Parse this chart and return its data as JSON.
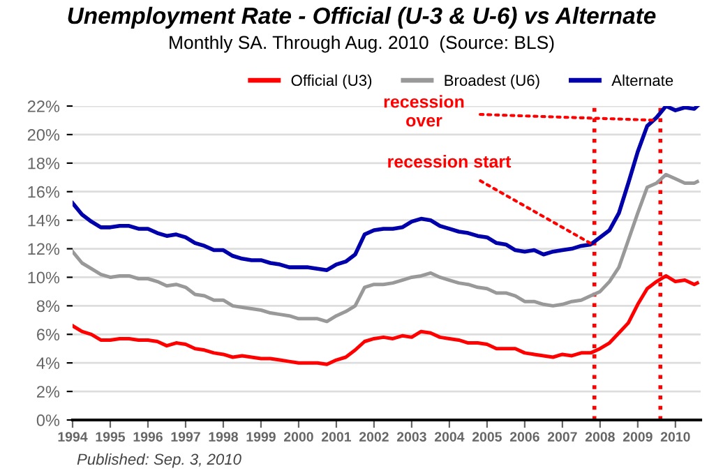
{
  "chart_data": {
    "type": "line",
    "title": "Unemployment Rate - Official (U-3 & U-6) vs Alternate",
    "subtitle": "Monthly SA. Through Aug. 2010  (Source: BLS)",
    "x": [
      1994.0,
      1994.25,
      1994.5,
      1994.75,
      1995.0,
      1995.25,
      1995.5,
      1995.75,
      1996.0,
      1996.25,
      1996.5,
      1996.75,
      1997.0,
      1997.25,
      1997.5,
      1997.75,
      1998.0,
      1998.25,
      1998.5,
      1998.75,
      1999.0,
      1999.25,
      1999.5,
      1999.75,
      2000.0,
      2000.25,
      2000.5,
      2000.75,
      2001.0,
      2001.25,
      2001.5,
      2001.75,
      2002.0,
      2002.25,
      2002.5,
      2002.75,
      2003.0,
      2003.25,
      2003.5,
      2003.75,
      2004.0,
      2004.25,
      2004.5,
      2004.75,
      2005.0,
      2005.25,
      2005.5,
      2005.75,
      2006.0,
      2006.25,
      2006.5,
      2006.75,
      2007.0,
      2007.25,
      2007.5,
      2007.75,
      2008.0,
      2008.25,
      2008.5,
      2008.75,
      2009.0,
      2009.25,
      2009.5,
      2009.75,
      2010.0,
      2010.25,
      2010.5,
      2010.58
    ],
    "series": [
      {
        "name": "Official (U3)",
        "color": "#ff0000",
        "values": [
          6.6,
          6.2,
          6.0,
          5.6,
          5.6,
          5.7,
          5.7,
          5.6,
          5.6,
          5.5,
          5.2,
          5.4,
          5.3,
          5.0,
          4.9,
          4.7,
          4.6,
          4.4,
          4.5,
          4.4,
          4.3,
          4.3,
          4.2,
          4.1,
          4.0,
          4.0,
          4.0,
          3.9,
          4.2,
          4.4,
          4.9,
          5.5,
          5.7,
          5.8,
          5.7,
          5.9,
          5.8,
          6.2,
          6.1,
          5.8,
          5.7,
          5.6,
          5.4,
          5.4,
          5.3,
          5.0,
          5.0,
          5.0,
          4.7,
          4.6,
          4.5,
          4.4,
          4.6,
          4.5,
          4.7,
          4.7,
          5.0,
          5.4,
          6.1,
          6.8,
          8.1,
          9.2,
          9.7,
          10.1,
          9.7,
          9.8,
          9.5,
          9.6
        ]
      },
      {
        "name": "Broadest (U6)",
        "color": "#999999",
        "values": [
          11.8,
          11.0,
          10.6,
          10.2,
          10.0,
          10.1,
          10.1,
          9.9,
          9.9,
          9.7,
          9.4,
          9.5,
          9.3,
          8.8,
          8.7,
          8.4,
          8.4,
          8.0,
          7.9,
          7.8,
          7.7,
          7.5,
          7.4,
          7.3,
          7.1,
          7.1,
          7.1,
          6.9,
          7.3,
          7.6,
          8.0,
          9.3,
          9.5,
          9.5,
          9.6,
          9.8,
          10.0,
          10.1,
          10.3,
          10.0,
          9.8,
          9.6,
          9.5,
          9.3,
          9.2,
          8.9,
          8.9,
          8.7,
          8.3,
          8.3,
          8.1,
          8.0,
          8.1,
          8.3,
          8.4,
          8.7,
          9.0,
          9.7,
          10.7,
          12.6,
          14.5,
          16.3,
          16.6,
          17.2,
          16.9,
          16.6,
          16.6,
          16.7
        ]
      },
      {
        "name": "Alternate",
        "color": "#0000aa",
        "values": [
          15.2,
          14.4,
          13.9,
          13.5,
          13.5,
          13.6,
          13.6,
          13.4,
          13.4,
          13.1,
          12.9,
          13.0,
          12.8,
          12.4,
          12.2,
          11.9,
          11.9,
          11.5,
          11.3,
          11.2,
          11.2,
          11.0,
          10.9,
          10.7,
          10.7,
          10.7,
          10.6,
          10.5,
          10.9,
          11.1,
          11.6,
          13.0,
          13.3,
          13.4,
          13.4,
          13.5,
          13.9,
          14.1,
          14.0,
          13.6,
          13.4,
          13.2,
          13.1,
          12.9,
          12.8,
          12.4,
          12.3,
          11.9,
          11.8,
          11.9,
          11.6,
          11.8,
          11.9,
          12.0,
          12.2,
          12.3,
          12.8,
          13.3,
          14.5,
          16.6,
          18.8,
          20.6,
          21.2,
          22.0,
          21.7,
          21.9,
          21.8,
          22.0
        ]
      }
    ],
    "xlim": [
      1994,
      2010.67
    ],
    "xticks": [
      1994,
      1995,
      1996,
      1997,
      1998,
      1999,
      2000,
      2001,
      2002,
      2003,
      2004,
      2005,
      2006,
      2007,
      2008,
      2009,
      2010
    ],
    "ylim": [
      0,
      22
    ],
    "yticks": [
      {
        "value": 0,
        "label": "0%"
      },
      {
        "value": 2,
        "label": "2%"
      },
      {
        "value": 4,
        "label": "4%"
      },
      {
        "value": 6,
        "label": "6%"
      },
      {
        "value": 8,
        "label": "8%"
      },
      {
        "value": 10,
        "label": "10%"
      },
      {
        "value": 12,
        "label": "12%"
      },
      {
        "value": 14,
        "label": "14%"
      },
      {
        "value": 16,
        "label": "16%"
      },
      {
        "value": 18,
        "label": "18%"
      },
      {
        "value": 20,
        "label": "20%"
      },
      {
        "value": 22,
        "label": "22%"
      }
    ],
    "ref_lines": [
      {
        "axis": "x",
        "value": 2007.85,
        "color": "#ff0000",
        "line_style": "dotted"
      },
      {
        "axis": "x",
        "value": 2009.6,
        "color": "#ff0000",
        "line_style": "dotted"
      }
    ],
    "annotations": [
      {
        "text": "recession start",
        "x": 2007.8,
        "y": 12.3
      },
      {
        "text": "recession\nover",
        "x": 2009.5,
        "y": 21.0
      },
      "Published: Sep. 3, 2010"
    ],
    "grid": "y",
    "legend": "top",
    "marker": "none",
    "line_style": "solid"
  }
}
